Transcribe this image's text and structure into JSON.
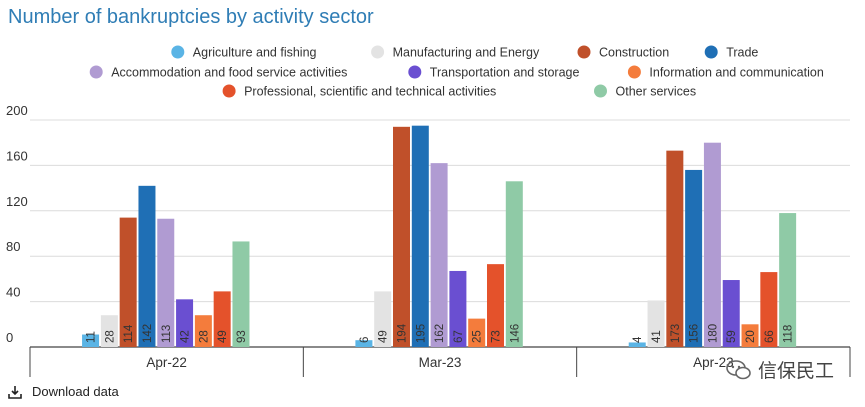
{
  "title": "Number of bankruptcies by activity sector",
  "download_label": "Download data",
  "watermark_text": "信保民工",
  "chart_data": {
    "type": "bar",
    "title": "Number of bankruptcies by activity sector",
    "xlabel": "",
    "ylabel": "",
    "ylim": [
      0,
      200
    ],
    "yticks": [
      0,
      40,
      80,
      120,
      160,
      200
    ],
    "grid": true,
    "legend_position": "top",
    "categories": [
      "Apr-22",
      "Mar-23",
      "Apr-23"
    ],
    "series": [
      {
        "name": "Agriculture and fishing",
        "color": "#5ab4e5",
        "values": [
          11,
          6,
          4
        ]
      },
      {
        "name": "Manufacturing and Energy",
        "color": "#e3e3e3",
        "values": [
          28,
          49,
          41
        ]
      },
      {
        "name": "Construction",
        "color": "#c0502a",
        "values": [
          114,
          194,
          173
        ]
      },
      {
        "name": "Trade",
        "color": "#1f6fb5",
        "values": [
          142,
          195,
          156
        ]
      },
      {
        "name": "Accommodation and food service activities",
        "color": "#b09bd2",
        "values": [
          113,
          162,
          180
        ]
      },
      {
        "name": "Transportation and storage",
        "color": "#6a4fd1",
        "values": [
          42,
          67,
          59
        ]
      },
      {
        "name": "Information and communication",
        "color": "#f47c3c",
        "values": [
          28,
          25,
          20
        ]
      },
      {
        "name": "Professional, scientific and technical activities",
        "color": "#e4522b",
        "values": [
          49,
          73,
          66
        ]
      },
      {
        "name": "Other services",
        "color": "#8fcaa6",
        "values": [
          93,
          146,
          118
        ]
      }
    ]
  }
}
